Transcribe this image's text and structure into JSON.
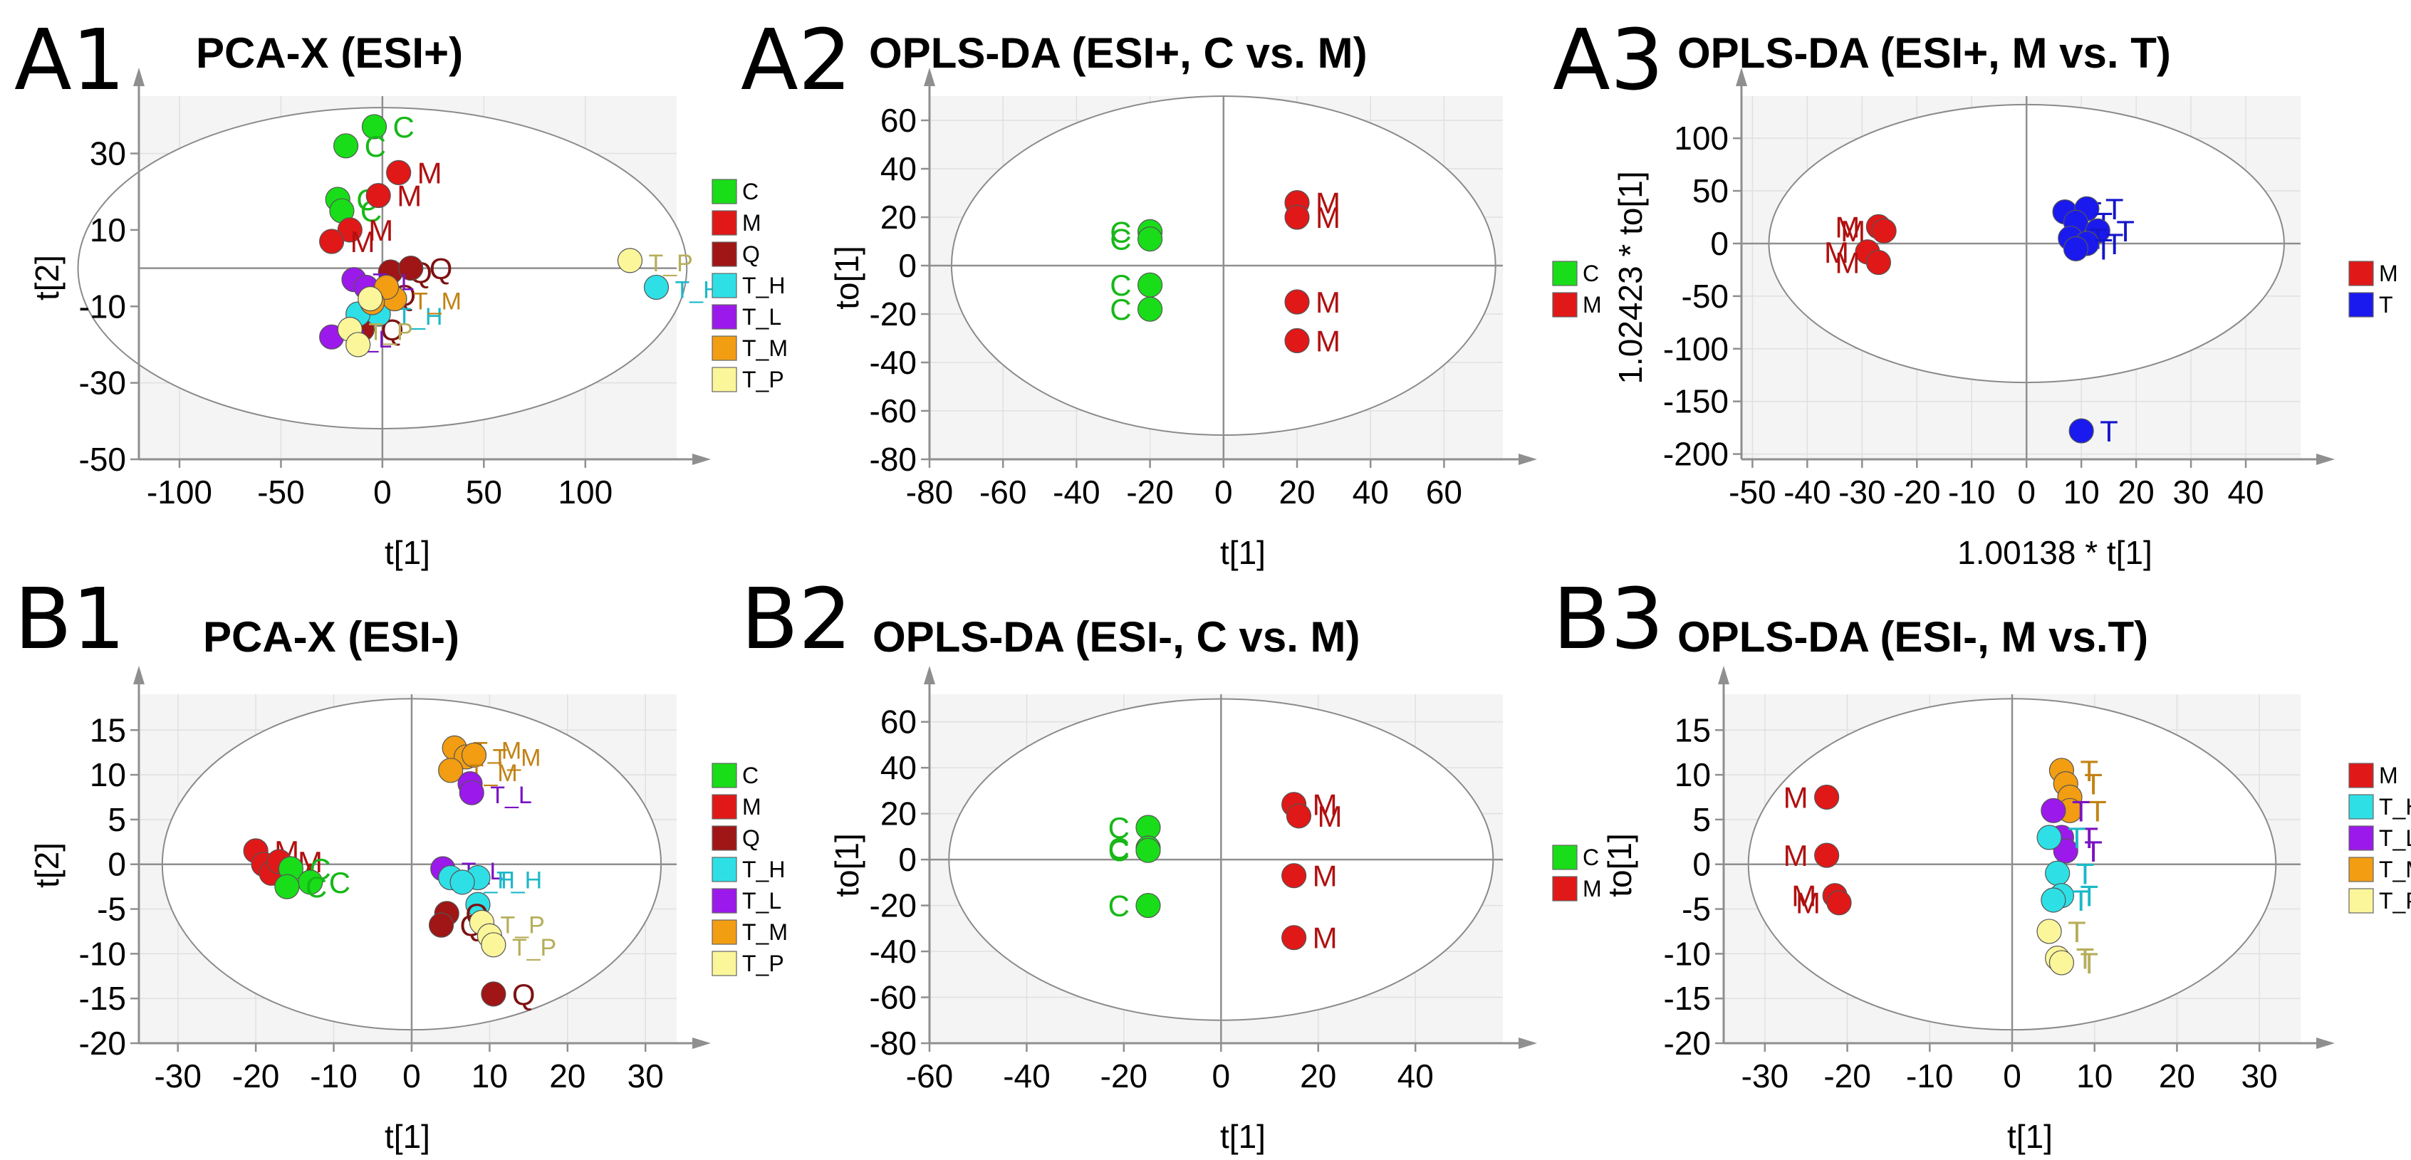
{
  "figure": {
    "colors": {
      "C": "#19dd19",
      "M": "#e01818",
      "Q": "#a01515",
      "T": "#1a1aee",
      "T_H": "#2ee0e6",
      "T_L": "#9b19ea",
      "T_M": "#f29d12",
      "T_P": "#fbf69a"
    },
    "label_colors": {
      "C": "#17b817",
      "M": "#b01010",
      "Q": "#7d1212",
      "T": "#1515cc",
      "T_H": "#1cb8c8",
      "T_L": "#7a12c2",
      "T_M": "#c28214",
      "T_P": "#b6ae59"
    }
  },
  "chart_data": [
    {
      "panel": "A1",
      "title": "PCA-X (ESI+)",
      "type": "scatter",
      "xlabel": "t[1]",
      "ylabel": "t[2]",
      "xlim": [
        -120,
        145
      ],
      "ylim": [
        -50,
        45
      ],
      "xticks": [
        "-100",
        "-50",
        "0",
        "50",
        "100"
      ],
      "xtick_values": [
        -100,
        -50,
        0,
        50,
        100
      ],
      "yticks": [
        "30",
        "10",
        "-10",
        "-30",
        "-50"
      ],
      "ytick_values": [
        30,
        10,
        -10,
        -30,
        -50
      ],
      "ellipse": {
        "cx": 0,
        "cy": 0,
        "rx": 150,
        "ry": 42
      },
      "legend": [
        "C",
        "M",
        "Q",
        "T_H",
        "T_L",
        "T_M",
        "T_P"
      ],
      "points": [
        {
          "g": "C",
          "x": -4,
          "y": 37,
          "label": "C"
        },
        {
          "g": "C",
          "x": -18,
          "y": 32,
          "label": "C"
        },
        {
          "g": "C",
          "x": -22,
          "y": 18,
          "label": "C"
        },
        {
          "g": "C",
          "x": -20,
          "y": 15,
          "label": "C"
        },
        {
          "g": "M",
          "x": 8,
          "y": 25,
          "label": "M"
        },
        {
          "g": "M",
          "x": -2,
          "y": 19,
          "label": "M"
        },
        {
          "g": "M",
          "x": -16,
          "y": 10,
          "label": "M"
        },
        {
          "g": "M",
          "x": -25,
          "y": 7,
          "label": "M"
        },
        {
          "g": "Q",
          "x": 4,
          "y": -1,
          "label": "Q"
        },
        {
          "g": "Q",
          "x": 14,
          "y": 0,
          "label": "Q"
        },
        {
          "g": "Q",
          "x": -10,
          "y": -16,
          "label": "Q"
        },
        {
          "g": "Q",
          "x": -4,
          "y": -7,
          "label": "Q"
        },
        {
          "g": "T_H",
          "x": 135,
          "y": -5,
          "label": "T_H"
        },
        {
          "g": "T_H",
          "x": -2,
          "y": -12,
          "label": "T_H"
        },
        {
          "g": "T_H",
          "x": -12,
          "y": -12,
          "label": ""
        },
        {
          "g": "T_L",
          "x": -25,
          "y": -18,
          "label": "T_L"
        },
        {
          "g": "T_L",
          "x": -14,
          "y": -3,
          "label": "T_L"
        },
        {
          "g": "T_L",
          "x": -8,
          "y": -5,
          "label": ""
        },
        {
          "g": "T_M",
          "x": 6,
          "y": -8,
          "label": "T_M"
        },
        {
          "g": "T_M",
          "x": 2,
          "y": -5,
          "label": ""
        },
        {
          "g": "T_M",
          "x": -5,
          "y": -9,
          "label": ""
        },
        {
          "g": "T_P",
          "x": 122,
          "y": 2,
          "label": "T_P"
        },
        {
          "g": "T_P",
          "x": -6,
          "y": -8,
          "label": ""
        },
        {
          "g": "T_P",
          "x": -16,
          "y": -16,
          "label": "T_P"
        },
        {
          "g": "T_P",
          "x": -12,
          "y": -20,
          "label": ""
        }
      ]
    },
    {
      "panel": "A2",
      "title": "OPLS-DA (ESI+, C vs. M)",
      "type": "scatter",
      "xlabel": "t[1]",
      "ylabel": "to[1]",
      "xlim": [
        -80,
        76
      ],
      "ylim": [
        -80,
        70
      ],
      "xticks": [
        "-80",
        "-60",
        "-40",
        "-20",
        "0",
        "20",
        "40",
        "60"
      ],
      "xtick_values": [
        -80,
        -60,
        -40,
        -20,
        0,
        20,
        40,
        60
      ],
      "yticks": [
        "60",
        "40",
        "20",
        "0",
        "-20",
        "-40",
        "-60",
        "-80"
      ],
      "ytick_values": [
        60,
        40,
        20,
        0,
        -20,
        -40,
        -60,
        -80
      ],
      "ellipse": {
        "cx": 0,
        "cy": 0,
        "rx": 74,
        "ry": 70
      },
      "legend": [
        "C",
        "M"
      ],
      "points": [
        {
          "g": "C",
          "x": -20,
          "y": 14,
          "label": "C"
        },
        {
          "g": "C",
          "x": -20,
          "y": 11,
          "label": "C"
        },
        {
          "g": "C",
          "x": -20,
          "y": -8,
          "label": "C"
        },
        {
          "g": "C",
          "x": -20,
          "y": -18,
          "label": "C"
        },
        {
          "g": "M",
          "x": 20,
          "y": 26,
          "label": "M"
        },
        {
          "g": "M",
          "x": 20,
          "y": 20,
          "label": "M"
        },
        {
          "g": "M",
          "x": 20,
          "y": -15,
          "label": "M"
        },
        {
          "g": "M",
          "x": 20,
          "y": -31,
          "label": "M"
        }
      ]
    },
    {
      "panel": "A3",
      "title": "OPLS-DA (ESI+, M vs. T)",
      "type": "scatter",
      "xlabel": "1.00138 * t[1]",
      "ylabel": "1.02423 * to[1]",
      "xlim": [
        -52,
        50
      ],
      "ylim": [
        -205,
        140
      ],
      "xticks": [
        "-50",
        "-40",
        "-30",
        "-20",
        "-10",
        "0",
        "10",
        "20",
        "30",
        "40"
      ],
      "xtick_values": [
        -50,
        -40,
        -30,
        -20,
        -10,
        0,
        10,
        20,
        30,
        40
      ],
      "yticks": [
        "100",
        "50",
        "0",
        "-50",
        "-100",
        "-150",
        "-200"
      ],
      "ytick_values": [
        100,
        50,
        0,
        -50,
        -100,
        -150,
        -200
      ],
      "ellipse": {
        "cx": 0,
        "cy": 0,
        "rx": 47,
        "ry": 132
      },
      "legend": [
        "M",
        "T"
      ],
      "points": [
        {
          "g": "M",
          "x": -27,
          "y": 16,
          "label": "M"
        },
        {
          "g": "M",
          "x": -26,
          "y": 12,
          "label": "M"
        },
        {
          "g": "M",
          "x": -29,
          "y": -8,
          "label": "M"
        },
        {
          "g": "M",
          "x": -27,
          "y": -18,
          "label": "M"
        },
        {
          "g": "T",
          "x": 7,
          "y": 30,
          "label": "T"
        },
        {
          "g": "T",
          "x": 11,
          "y": 33,
          "label": "T"
        },
        {
          "g": "T",
          "x": 9,
          "y": 20,
          "label": "T"
        },
        {
          "g": "T",
          "x": 13,
          "y": 12,
          "label": "T"
        },
        {
          "g": "T",
          "x": 8,
          "y": 5,
          "label": "T"
        },
        {
          "g": "T",
          "x": 11,
          "y": 0,
          "label": "T"
        },
        {
          "g": "T",
          "x": 9,
          "y": -5,
          "label": "T"
        },
        {
          "g": "T",
          "x": 10,
          "y": -178,
          "label": "T"
        }
      ]
    },
    {
      "panel": "B1",
      "title": "PCA-X (ESI-)",
      "type": "scatter",
      "xlabel": "t[1]",
      "ylabel": "t[2]",
      "xlim": [
        -35,
        34
      ],
      "ylim": [
        -20,
        19
      ],
      "xticks": [
        "-30",
        "-20",
        "-10",
        "0",
        "10",
        "20",
        "30"
      ],
      "xtick_values": [
        -30,
        -20,
        -10,
        0,
        10,
        20,
        30
      ],
      "yticks": [
        "15",
        "10",
        "5",
        "0",
        "-5",
        "-10",
        "-15",
        "-20"
      ],
      "ytick_values": [
        15,
        10,
        5,
        0,
        -5,
        -10,
        -15,
        -20
      ],
      "ellipse": {
        "cx": 0,
        "cy": 0,
        "rx": 32,
        "ry": 18.5
      },
      "legend": [
        "C",
        "M",
        "Q",
        "T_H",
        "T_L",
        "T_M",
        "T_P"
      ],
      "points": [
        {
          "g": "M",
          "x": -20,
          "y": 1.5,
          "label": "M"
        },
        {
          "g": "M",
          "x": -19,
          "y": 0,
          "label": ""
        },
        {
          "g": "M",
          "x": -18,
          "y": -1,
          "label": "M"
        },
        {
          "g": "M",
          "x": -17,
          "y": 0.3,
          "label": "M"
        },
        {
          "g": "C",
          "x": -15.5,
          "y": -0.5,
          "label": "C"
        },
        {
          "g": "C",
          "x": -13,
          "y": -2,
          "label": "C"
        },
        {
          "g": "C",
          "x": -16,
          "y": -2.5,
          "label": "C"
        },
        {
          "g": "T_M",
          "x": 5.5,
          "y": 13,
          "label": "T_M"
        },
        {
          "g": "T_M",
          "x": 7,
          "y": 12,
          "label": ""
        },
        {
          "g": "T_M",
          "x": 8,
          "y": 12.2,
          "label": "T_M"
        },
        {
          "g": "T_M",
          "x": 5,
          "y": 10.5,
          "label": "T_M"
        },
        {
          "g": "T_L",
          "x": 7.5,
          "y": 9,
          "label": ""
        },
        {
          "g": "T_L",
          "x": 7.7,
          "y": 8,
          "label": "T_L"
        },
        {
          "g": "T_L",
          "x": 4,
          "y": -0.5,
          "label": "T_L"
        },
        {
          "g": "T_H",
          "x": 5,
          "y": -1.5,
          "label": "T_H"
        },
        {
          "g": "T_H",
          "x": 8.5,
          "y": -1.5,
          "label": "T_H"
        },
        {
          "g": "T_H",
          "x": 6.5,
          "y": -2,
          "label": ""
        },
        {
          "g": "T_H",
          "x": 8.5,
          "y": -4.5,
          "label": ""
        },
        {
          "g": "Q",
          "x": 4.5,
          "y": -5.5,
          "label": "Q"
        },
        {
          "g": "Q",
          "x": 3.8,
          "y": -6.8,
          "label": "Q"
        },
        {
          "g": "Q",
          "x": 10.5,
          "y": -14.5,
          "label": "Q"
        },
        {
          "g": "T_P",
          "x": 9,
          "y": -6.5,
          "label": "T_P"
        },
        {
          "g": "T_P",
          "x": 10,
          "y": -8,
          "label": ""
        },
        {
          "g": "T_P",
          "x": 10.5,
          "y": -9,
          "label": "T_P"
        }
      ]
    },
    {
      "panel": "B2",
      "title": "OPLS-DA (ESI-, C vs. M)",
      "type": "scatter",
      "xlabel": "t[1]",
      "ylabel": "to[1]",
      "xlim": [
        -60,
        58
      ],
      "ylim": [
        -80,
        72
      ],
      "xticks": [
        "-60",
        "-40",
        "-20",
        "0",
        "20",
        "40"
      ],
      "xtick_values": [
        -60,
        -40,
        -20,
        0,
        20,
        40
      ],
      "yticks": [
        "60",
        "40",
        "20",
        "0",
        "-20",
        "-40",
        "-60",
        "-80"
      ],
      "ytick_values": [
        60,
        40,
        20,
        0,
        -20,
        -40,
        -60,
        -80
      ],
      "ellipse": {
        "cx": 0,
        "cy": 0,
        "rx": 56,
        "ry": 70
      },
      "legend": [
        "C",
        "M"
      ],
      "points": [
        {
          "g": "C",
          "x": -15,
          "y": 14,
          "label": "C"
        },
        {
          "g": "C",
          "x": -15,
          "y": 5,
          "label": "C"
        },
        {
          "g": "C",
          "x": -15,
          "y": 4,
          "label": "C"
        },
        {
          "g": "C",
          "x": -15,
          "y": -20,
          "label": "C"
        },
        {
          "g": "M",
          "x": 15,
          "y": 24,
          "label": "M"
        },
        {
          "g": "M",
          "x": 16,
          "y": 19,
          "label": "M"
        },
        {
          "g": "M",
          "x": 15,
          "y": -7,
          "label": "M"
        },
        {
          "g": "M",
          "x": 15,
          "y": -34,
          "label": "M"
        }
      ]
    },
    {
      "panel": "B3",
      "title": "OPLS-DA (ESI-, M vs.T)",
      "type": "scatter",
      "xlabel": "t[1]",
      "ylabel": "to[1]",
      "xlim": [
        -35,
        35
      ],
      "ylim": [
        -20,
        19
      ],
      "xticks": [
        "-30",
        "-20",
        "-10",
        "0",
        "10",
        "20",
        "30"
      ],
      "xtick_values": [
        -30,
        -20,
        -10,
        0,
        10,
        20,
        30
      ],
      "yticks": [
        "15",
        "10",
        "5",
        "0",
        "-5",
        "-10",
        "-15",
        "-20"
      ],
      "ytick_values": [
        15,
        10,
        5,
        0,
        -5,
        -10,
        -15,
        -20
      ],
      "ellipse": {
        "cx": 0,
        "cy": 0,
        "rx": 32,
        "ry": 18.5
      },
      "legend": [
        "M",
        "T_H",
        "T_L",
        "T_M",
        "T_P"
      ],
      "points": [
        {
          "g": "M",
          "x": -22.5,
          "y": 7.5,
          "label": "M"
        },
        {
          "g": "M",
          "x": -22.5,
          "y": 1,
          "label": "M"
        },
        {
          "g": "M",
          "x": -21.5,
          "y": -3.5,
          "label": "M"
        },
        {
          "g": "M",
          "x": -21,
          "y": -4.3,
          "label": "M"
        },
        {
          "g": "T_M",
          "x": 6,
          "y": 10.5,
          "label": "T"
        },
        {
          "g": "T_M",
          "x": 6.5,
          "y": 9,
          "label": "T"
        },
        {
          "g": "T_M",
          "x": 7,
          "y": 7.5,
          "label": ""
        },
        {
          "g": "T_M",
          "x": 7,
          "y": 6,
          "label": "T"
        },
        {
          "g": "T_L",
          "x": 5,
          "y": 6,
          "label": "T"
        },
        {
          "g": "T_L",
          "x": 6,
          "y": 3,
          "label": "T"
        },
        {
          "g": "T_L",
          "x": 6.5,
          "y": 1.5,
          "label": "T"
        },
        {
          "g": "T_H",
          "x": 4.5,
          "y": 3,
          "label": "T"
        },
        {
          "g": "T_H",
          "x": 5.5,
          "y": -1,
          "label": "T"
        },
        {
          "g": "T_H",
          "x": 6,
          "y": -3.5,
          "label": "T"
        },
        {
          "g": "T_H",
          "x": 5,
          "y": -4,
          "label": "T"
        },
        {
          "g": "T_P",
          "x": 4.5,
          "y": -7.5,
          "label": "T"
        },
        {
          "g": "T_P",
          "x": 5.5,
          "y": -10.5,
          "label": "T"
        },
        {
          "g": "T_P",
          "x": 6,
          "y": -11,
          "label": "T"
        }
      ]
    }
  ]
}
